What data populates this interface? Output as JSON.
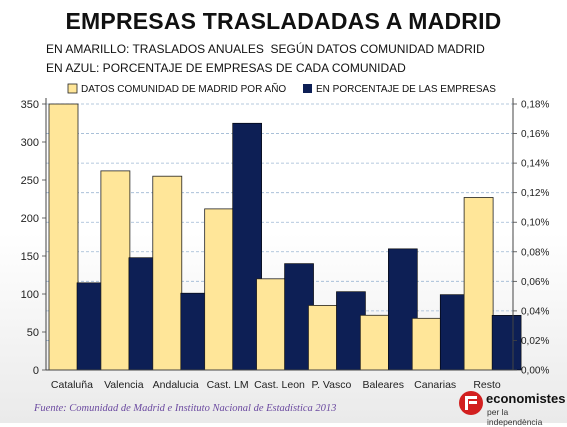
{
  "title": "EMPRESAS TRASLADADAS A MADRID",
  "subtitle_1": "EN AMARILLO: TRASLADOS ANUALES  SEGÚN DATOS COMUNIDAD MADRID",
  "subtitle_2": "EN AZUL: PORCENTAJE DE EMPRESAS DE CADA COMUNIDAD",
  "source": "Fuente:  Comunidad de Madrid e Instituto Nacional de Estadística 2013",
  "logo": {
    "line1": "economistes",
    "line2": "per la independència"
  },
  "colors": {
    "yellow": "#FFE699",
    "navy": "#0D1F55",
    "grid": "#9DB7D3"
  },
  "chart_data": {
    "type": "bar",
    "categories": [
      "Cataluña",
      "Valencia",
      "Andalucia",
      "Cast. LM",
      "Cast. Leon",
      "P. Vasco",
      "Baleares",
      "Canarias",
      "Resto"
    ],
    "series": [
      {
        "name": "DATOS COMUNIDAD DE MADRID POR AÑO",
        "axis": "left",
        "color": "#FFE699",
        "values": [
          350,
          262,
          255,
          212,
          120,
          85,
          72,
          68,
          227
        ]
      },
      {
        "name": "EN PORCENTAJE DE LAS EMPRESAS",
        "axis": "right",
        "color": "#0D1F55",
        "values": [
          0.059,
          0.076,
          0.052,
          0.167,
          0.072,
          0.053,
          0.082,
          0.051,
          0.037
        ]
      }
    ],
    "y_left": {
      "min": 0,
      "max": 350,
      "ticks": [
        0,
        50,
        100,
        150,
        200,
        250,
        300,
        350
      ]
    },
    "y_right": {
      "min": 0,
      "max": 0.18,
      "ticks": [
        0,
        0.02,
        0.04,
        0.06,
        0.08,
        0.1,
        0.12,
        0.14,
        0.16,
        0.18
      ],
      "tick_labels": [
        "0,00%",
        "0,02%",
        "0,04%",
        "0,06%",
        "0,08%",
        "0,10%",
        "0,12%",
        "0,14%",
        "0,16%",
        "0,18%"
      ]
    },
    "legend_position": "top",
    "grid": true
  }
}
